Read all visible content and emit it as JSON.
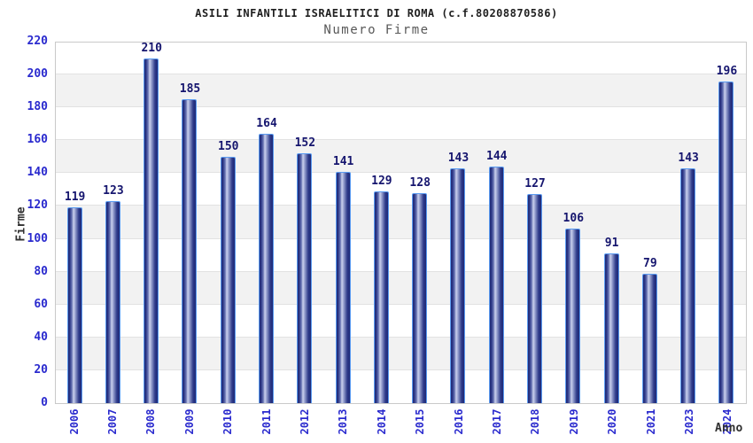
{
  "chart_data": {
    "type": "bar",
    "title": "ASILI INFANTILI ISRAELITICI DI ROMA (c.f.80208870586)",
    "subtitle": "Numero Firme",
    "xlabel": "Anno",
    "ylabel": "Firme",
    "categories": [
      "2006",
      "2007",
      "2008",
      "2009",
      "2010",
      "2011",
      "2012",
      "2013",
      "2014",
      "2015",
      "2016",
      "2017",
      "2018",
      "2019",
      "2020",
      "2021",
      "2023",
      "2024"
    ],
    "values": [
      119,
      123,
      210,
      185,
      150,
      164,
      152,
      141,
      129,
      128,
      143,
      144,
      127,
      106,
      91,
      79,
      143,
      196
    ],
    "y_ticks": [
      0,
      20,
      40,
      60,
      80,
      100,
      120,
      140,
      160,
      180,
      200,
      220
    ],
    "ylim": [
      0,
      220
    ],
    "ytick_step": 20,
    "grid": "horizontal-gridlines-with-alternating-bands",
    "legend": "none",
    "bar_labels_shown": true
  },
  "colors": {
    "bar_dark": "#1e2976",
    "bar_highlight": "#ccd2ee",
    "bar_border": "#5a9bf1",
    "tick_label_blue": "#2a2ace",
    "value_label_navy": "#15156e",
    "title_color": "#1f1f1f",
    "subtitle_color": "#585858",
    "axis_label_color": "#303030",
    "band_gray": "#f2f2f2",
    "gridline": "#e2e2e2",
    "plot_border": "#c9c9c9",
    "background": "#ffffff"
  }
}
